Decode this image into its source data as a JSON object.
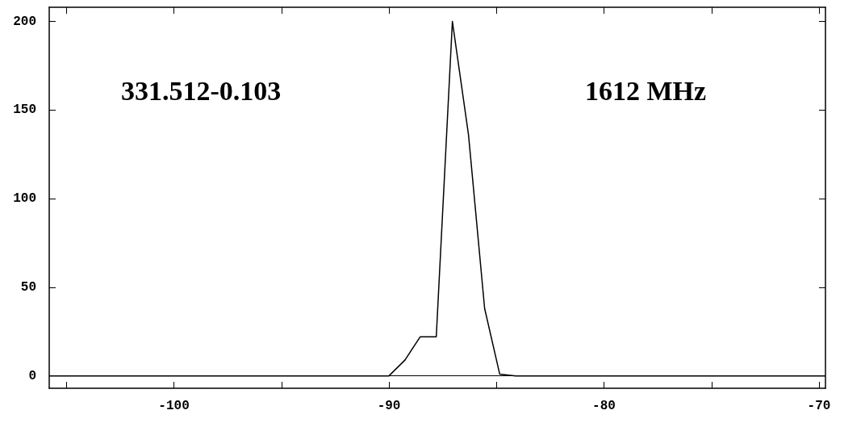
{
  "chart_data": {
    "type": "line",
    "x": [
      -105.8,
      -90.0,
      -89.25,
      -88.55,
      -87.8,
      -87.05,
      -86.3,
      -85.55,
      -84.85,
      -84.1,
      -69.7
    ],
    "values": [
      0,
      0,
      9,
      22,
      22,
      200,
      136,
      38,
      1,
      0,
      0
    ],
    "color": "#000000",
    "xlim": [
      -105.8,
      -69.7
    ],
    "xticks": [
      {
        "value": -105,
        "label": null
      },
      -100,
      {
        "value": -95,
        "label": null
      },
      -90,
      {
        "value": -85,
        "label": null
      },
      -80,
      {
        "value": -75,
        "label": null
      },
      -70
    ],
    "ylim": [
      -7,
      208
    ],
    "yticks": [
      0,
      50,
      100,
      150,
      200
    ],
    "annotations": [
      "331.512-0.103",
      "1612 MHz"
    ],
    "ref_lines": [
      {
        "axis": "y",
        "value": 0
      }
    ],
    "grid": false,
    "marker": "none",
    "line_style": "solid"
  }
}
